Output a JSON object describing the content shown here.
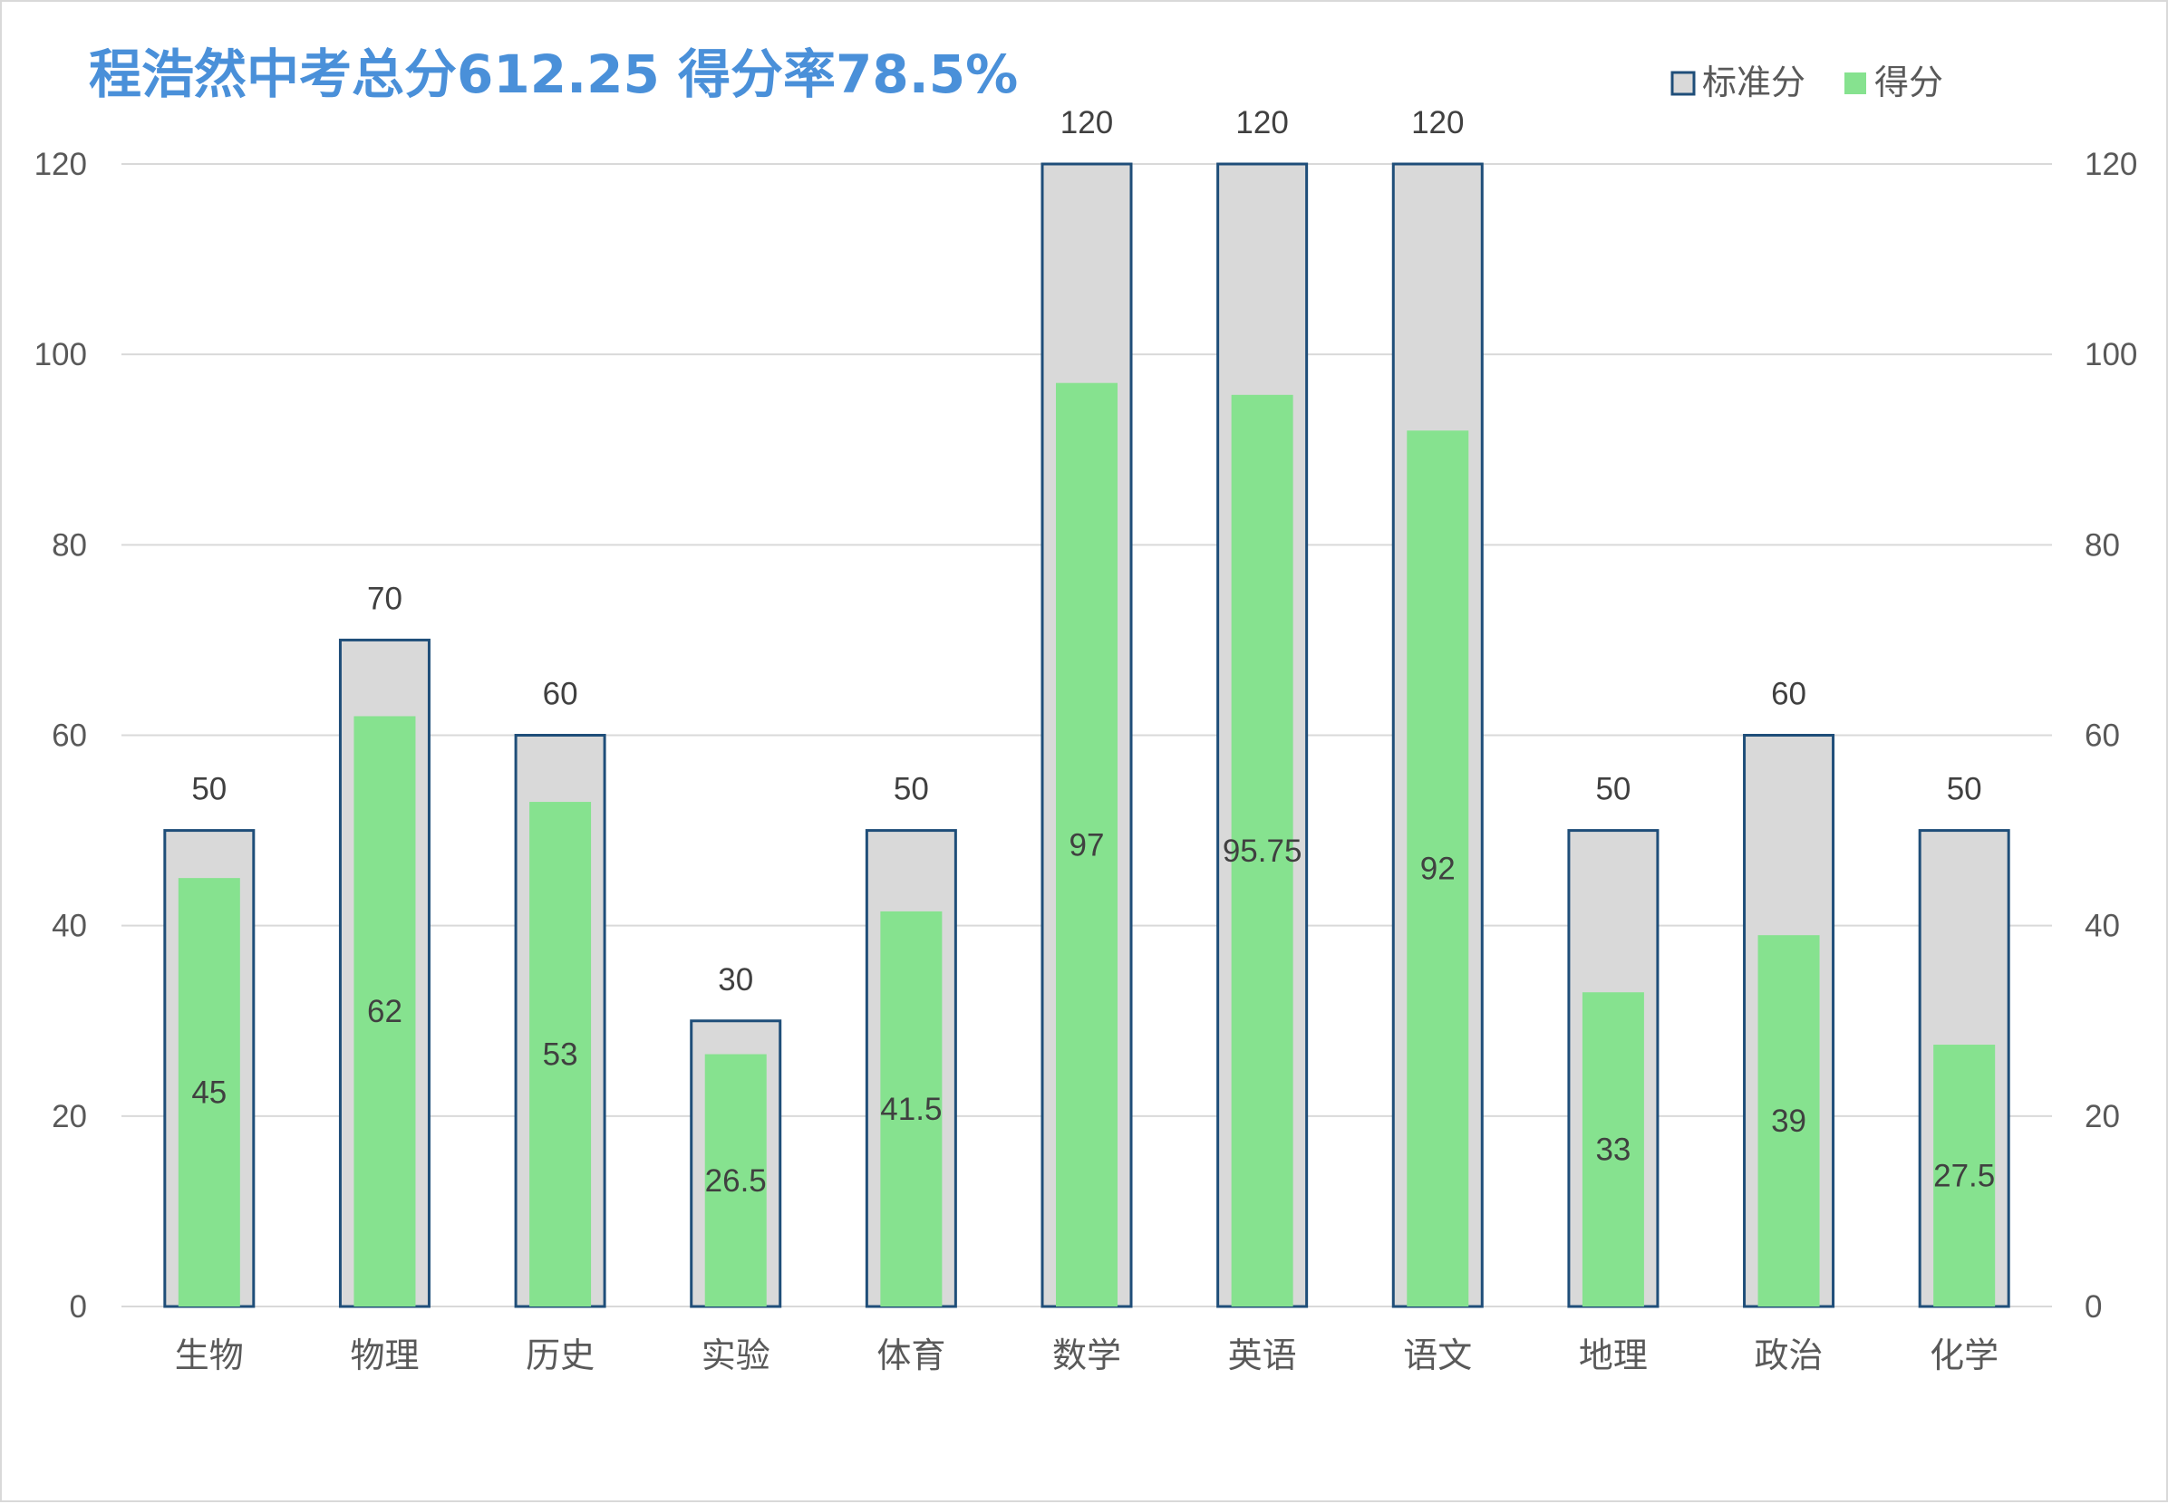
{
  "chart_data": {
    "type": "bar",
    "title": "程浩然中考总分612.25 得分率78.5%",
    "categories": [
      "生物",
      "物理",
      "历史",
      "实验",
      "体育",
      "数学",
      "英语",
      "语文",
      "地理",
      "政治",
      "化学"
    ],
    "series": [
      {
        "name": "标准分",
        "values": [
          50,
          70,
          60,
          30,
          50,
          120,
          120,
          120,
          50,
          60,
          50
        ],
        "color": "#d9d9d9",
        "border_color": "#1f4e79"
      },
      {
        "name": "得分",
        "values": [
          45,
          62,
          53,
          26.5,
          41.5,
          97,
          95.75,
          92,
          33,
          39,
          27.5
        ],
        "color": "#86e28f"
      }
    ],
    "ylim": [
      0,
      120
    ],
    "yticks": [
      0,
      20,
      40,
      60,
      80,
      100,
      120
    ],
    "secondary_ylim": [
      0,
      120
    ],
    "secondary_yticks": [
      0,
      20,
      40,
      60,
      80,
      100,
      120
    ],
    "grid": true,
    "legend_position": "top-right",
    "title_color": "#4a90d9",
    "grid_color": "#d9d9d9"
  }
}
